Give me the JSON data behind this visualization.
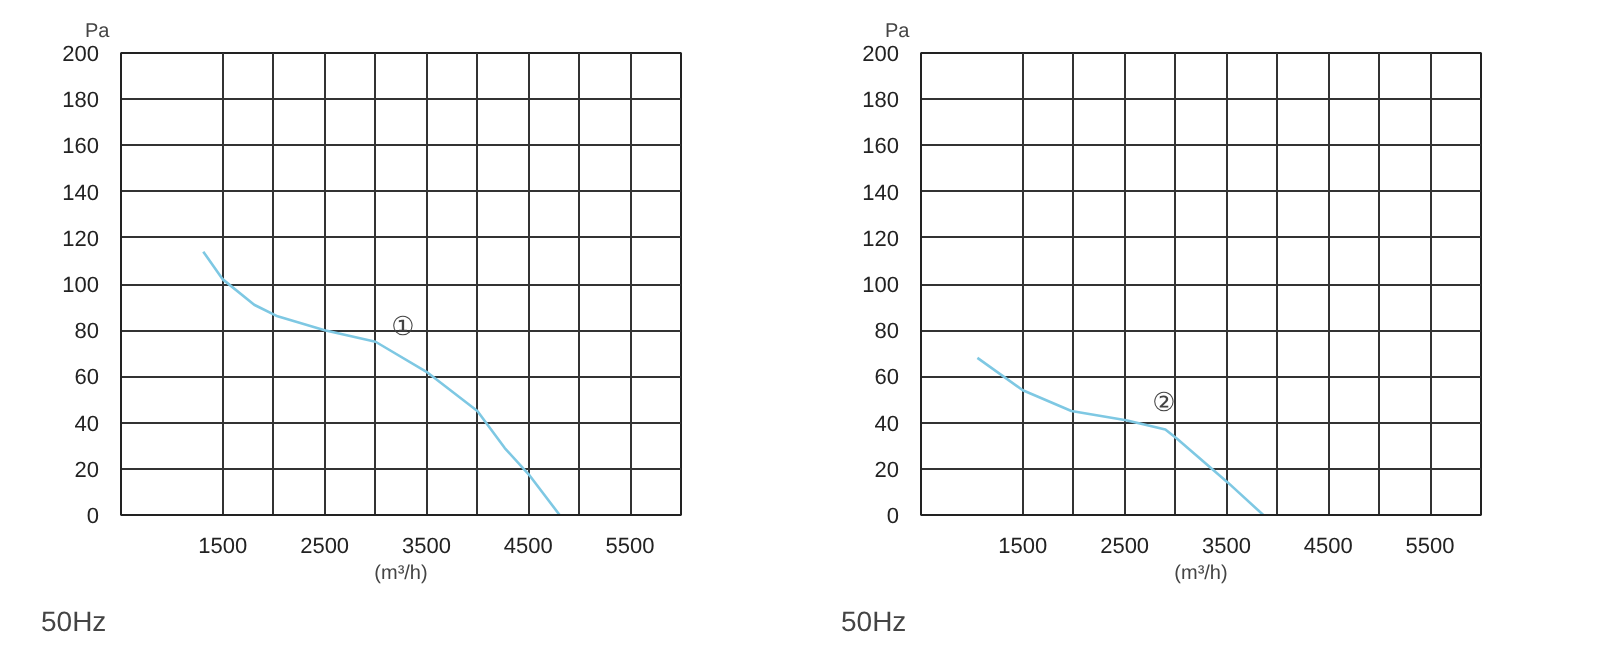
{
  "chart_data": [
    {
      "type": "line",
      "xlabel": "(m³/h)",
      "ylabel": "Pa",
      "xlim": [
        500,
        6000
      ],
      "ylim": [
        0,
        200
      ],
      "xticks": [
        {
          "value": 1500,
          "label": "1500"
        },
        {
          "value": 2000,
          "label": null
        },
        {
          "value": 2500,
          "label": "2500"
        },
        {
          "value": 3000,
          "label": null
        },
        {
          "value": 3500,
          "label": "3500"
        },
        {
          "value": 4000,
          "label": null
        },
        {
          "value": 4500,
          "label": "4500"
        },
        {
          "value": 5000,
          "label": null
        },
        {
          "value": 5500,
          "label": "5500"
        },
        {
          "value": 6000,
          "label": null
        }
      ],
      "yticks": [
        0,
        20,
        40,
        60,
        80,
        100,
        120,
        140,
        160,
        180,
        200
      ],
      "grid": true,
      "series": [
        {
          "color": "#7ec8e3",
          "x": [
            1308,
            1500,
            1808,
            2038,
            2500,
            3000,
            3500,
            4000,
            4269,
            4515,
            4808
          ],
          "values": [
            114,
            102,
            91,
            86,
            80,
            75,
            62,
            45,
            29,
            17,
            0
          ]
        }
      ],
      "annotations": [
        {
          "text": "①",
          "x": 3269,
          "y": 72
        },
        "50Hz"
      ]
    },
    {
      "type": "line",
      "xlabel": "(m³/h)",
      "ylabel": "Pa",
      "xlim": [
        500,
        6000
      ],
      "ylim": [
        0,
        200
      ],
      "xticks": [
        {
          "value": 1500,
          "label": "1500"
        },
        {
          "value": 2000,
          "label": null
        },
        {
          "value": 2500,
          "label": "2500"
        },
        {
          "value": 3000,
          "label": null
        },
        {
          "value": 3500,
          "label": "3500"
        },
        {
          "value": 4000,
          "label": null
        },
        {
          "value": 4500,
          "label": "4500"
        },
        {
          "value": 5000,
          "label": null
        },
        {
          "value": 5500,
          "label": "5500"
        },
        {
          "value": 6000,
          "label": null
        }
      ],
      "yticks": [
        0,
        20,
        40,
        60,
        80,
        100,
        120,
        140,
        160,
        180,
        200
      ],
      "grid": true,
      "series": [
        {
          "color": "#7ec8e3",
          "x": [
            1054,
            1500,
            1977,
            2515,
            2900,
            3015,
            3515,
            3862
          ],
          "values": [
            68,
            54,
            45,
            41,
            37,
            33,
            14,
            0
          ]
        }
      ],
      "annotations": [
        {
          "text": "②",
          "x": 2885,
          "y": 39
        },
        "50Hz"
      ]
    }
  ]
}
